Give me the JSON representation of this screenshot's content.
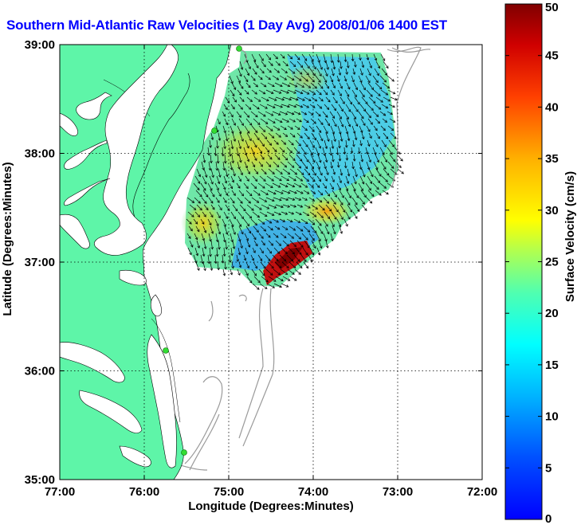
{
  "title": "Southern Mid-Atlantic Raw Velocities (1 Day Avg) 2008/01/06 1400 EST",
  "map": {
    "x_label": "Longitude (Degrees:Minutes)",
    "y_label": "Latitude (Degrees:Minutes)",
    "x_ticks": [
      "77:00",
      "76:00",
      "75:00",
      "74:00",
      "73:00",
      "72:00"
    ],
    "y_ticks": [
      "39:00",
      "38:00",
      "37:00",
      "36:00",
      "35:00"
    ],
    "lon_range_west": [
      77,
      72
    ],
    "lat_range": [
      35,
      39
    ],
    "grid": "dotted",
    "land_color": "#5ef5a8",
    "contour_color": "#9a9a9a",
    "station_color": "#33dd33"
  },
  "colorbar": {
    "label": "Surface Velocity (cm/s)",
    "range": [
      0,
      50
    ],
    "ticks": [
      "0",
      "5",
      "10",
      "15",
      "20",
      "25",
      "30",
      "35",
      "40",
      "45",
      "50"
    ],
    "colormap": "jet"
  }
}
